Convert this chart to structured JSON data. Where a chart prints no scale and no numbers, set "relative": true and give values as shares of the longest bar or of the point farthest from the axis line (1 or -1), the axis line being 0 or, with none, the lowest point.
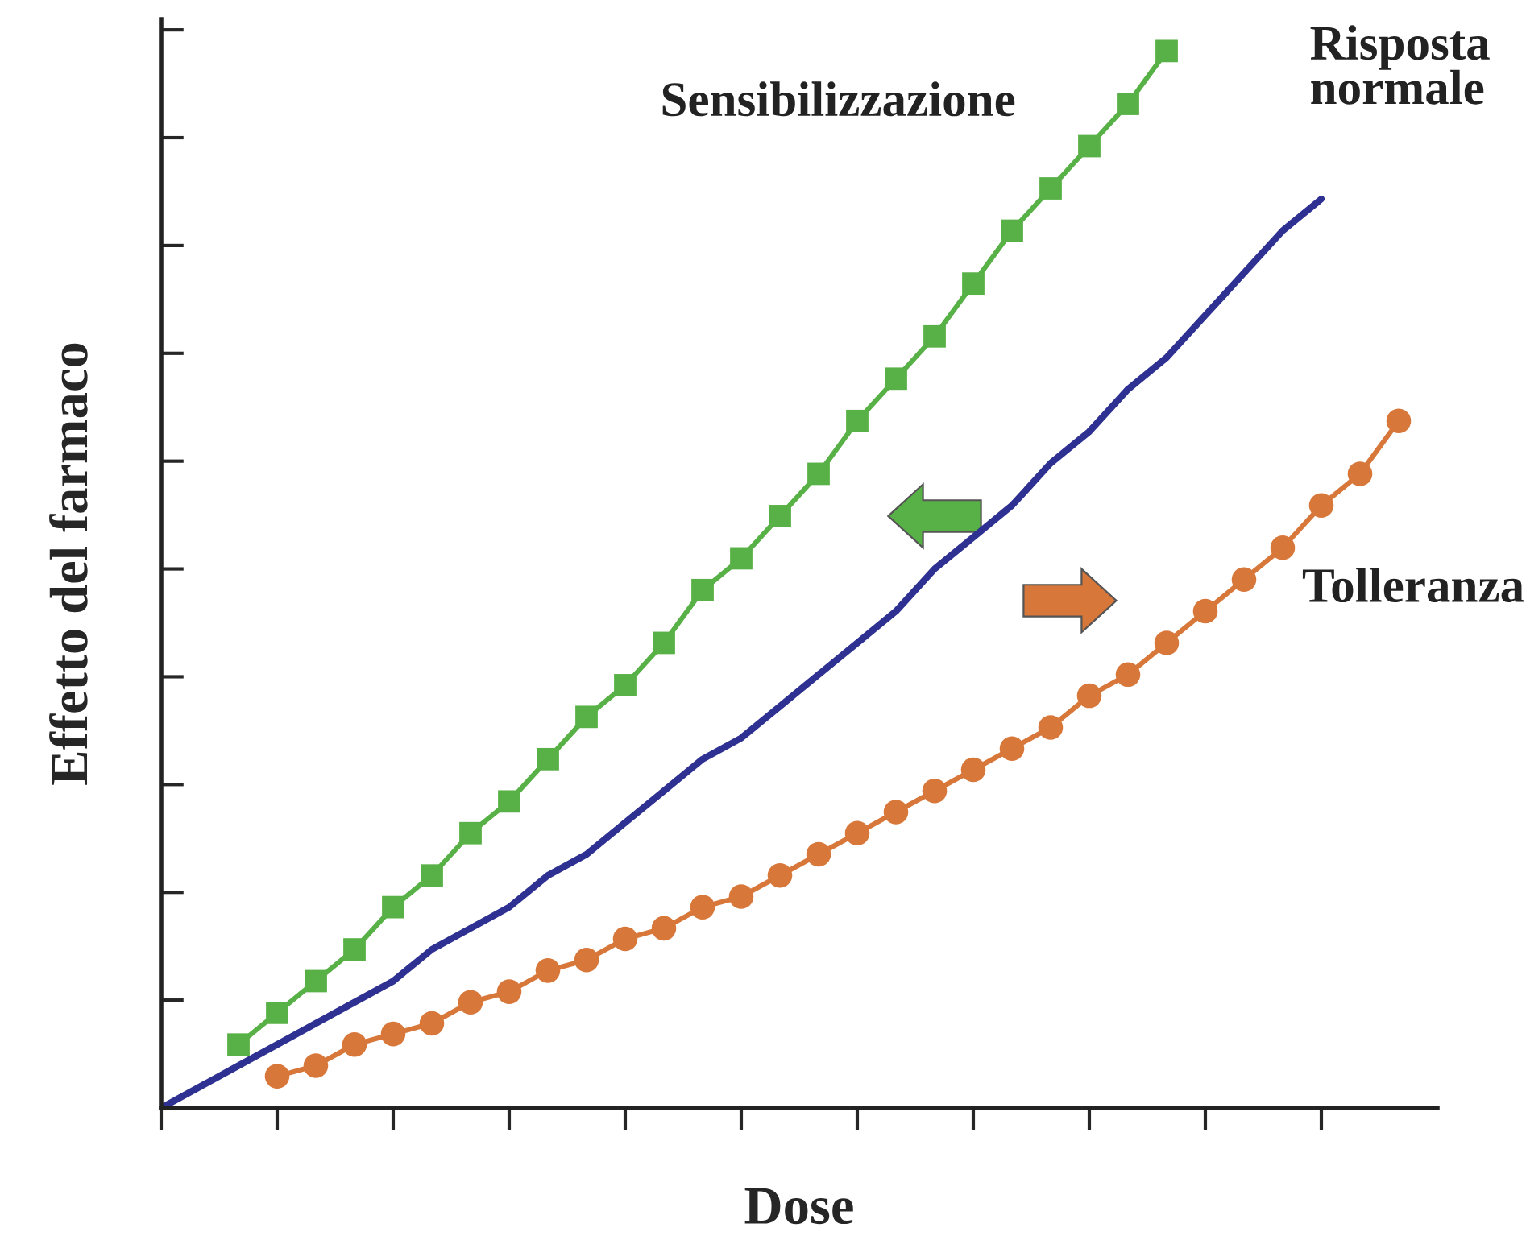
{
  "chart_data": {
    "type": "line",
    "relative": true,
    "xlabel": "Dose",
    "ylabel": "Effetto del farmaco",
    "categories": [
      null,
      null,
      null,
      null,
      null,
      null,
      null,
      null,
      null,
      null,
      null,
      null,
      null,
      null,
      null,
      null,
      null,
      null,
      null,
      null,
      null,
      null,
      null,
      null,
      null,
      null,
      null,
      null,
      null,
      null,
      null,
      null,
      null
    ],
    "series": [
      {
        "name": "Sensibilizzazione",
        "color": "#58b146",
        "marker": "square",
        "values": [
          null,
          null,
          0.06,
          0.09,
          0.12,
          0.15,
          0.19,
          0.22,
          0.26,
          0.29,
          0.33,
          0.37,
          0.4,
          0.44,
          0.49,
          0.52,
          0.56,
          0.6,
          0.65,
          0.69,
          0.73,
          0.78,
          0.83,
          0.87,
          0.91,
          0.95,
          1.0,
          null,
          null,
          null,
          null,
          null,
          null
        ]
      },
      {
        "name": "Risposta normale",
        "color": "#2e3192",
        "marker": "none",
        "values": [
          0,
          0.02,
          0.04,
          0.06,
          0.08,
          0.1,
          0.12,
          0.15,
          0.17,
          0.19,
          0.22,
          0.24,
          0.27,
          0.3,
          0.33,
          0.35,
          0.38,
          0.41,
          0.44,
          0.47,
          0.51,
          0.54,
          0.57,
          0.61,
          0.64,
          0.68,
          0.71,
          0.75,
          0.79,
          0.83,
          0.86,
          null,
          null
        ]
      },
      {
        "name": "Tolleranza",
        "color": "#d8773a",
        "marker": "circle",
        "values": [
          null,
          null,
          null,
          0.03,
          0.04,
          0.06,
          0.07,
          0.08,
          0.1,
          0.11,
          0.13,
          0.14,
          0.16,
          0.17,
          0.19,
          0.2,
          0.22,
          0.24,
          0.26,
          0.28,
          0.3,
          0.32,
          0.34,
          0.36,
          0.39,
          0.41,
          0.44,
          0.47,
          0.5,
          0.53,
          0.57,
          0.6,
          0.65
        ]
      }
    ],
    "legend": false
  }
}
